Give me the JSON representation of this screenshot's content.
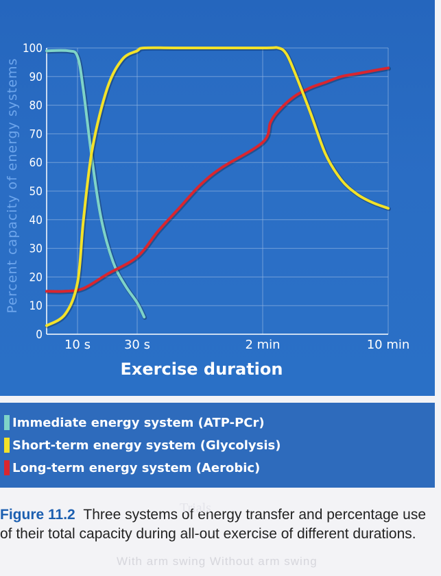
{
  "chart_data": {
    "type": "line",
    "ylabel": "Percent capacity of energy systems",
    "xlabel": "Exercise duration",
    "ylim": [
      0,
      100
    ],
    "yticks": [
      0,
      10,
      20,
      30,
      40,
      50,
      60,
      70,
      80,
      90,
      100
    ],
    "xticks": [
      "10 s",
      "30 s",
      "2 min",
      "10 min"
    ],
    "grid": true,
    "legend_position": "bottom",
    "series": [
      {
        "name": "Immediate energy system (ATP-PCr)",
        "color": "#7ed3c8",
        "x": [
          0,
          7,
          10,
          12,
          15,
          18,
          22,
          26,
          30,
          35
        ],
        "y": [
          99,
          99,
          97,
          85,
          60,
          40,
          25,
          17,
          11,
          6
        ]
      },
      {
        "name": "Short-term energy system (Glycolysis)",
        "color": "#f2e22a",
        "x": [
          0,
          6,
          10,
          12,
          15,
          20,
          25,
          30,
          35,
          60,
          120,
          180,
          210,
          240,
          300,
          360,
          420,
          480,
          540,
          600
        ],
        "y": [
          3,
          7,
          18,
          40,
          65,
          86,
          96,
          99,
          100,
          100,
          100,
          100,
          98,
          92,
          78,
          63,
          54,
          49,
          46,
          44
        ]
      },
      {
        "name": "Long-term energy system (Aerobic)",
        "color": "#d9262f",
        "x": [
          0,
          6,
          12,
          20,
          30,
          45,
          60,
          75,
          90,
          120,
          150,
          180,
          240,
          300,
          360,
          420,
          480,
          540,
          600
        ],
        "y": [
          15,
          15,
          16,
          21,
          27,
          36,
          44,
          52,
          58,
          67,
          74,
          78,
          83,
          86,
          88,
          90,
          91,
          92,
          93
        ]
      }
    ]
  },
  "caption": {
    "label": "Figure 11.2",
    "text": "Three systems of energy transfer and percentage use of their total capacity during all-out exercise of different durations."
  },
  "bleed_text": {
    "title": "Trials",
    "legend": "With arm swing    Without arm swing"
  }
}
